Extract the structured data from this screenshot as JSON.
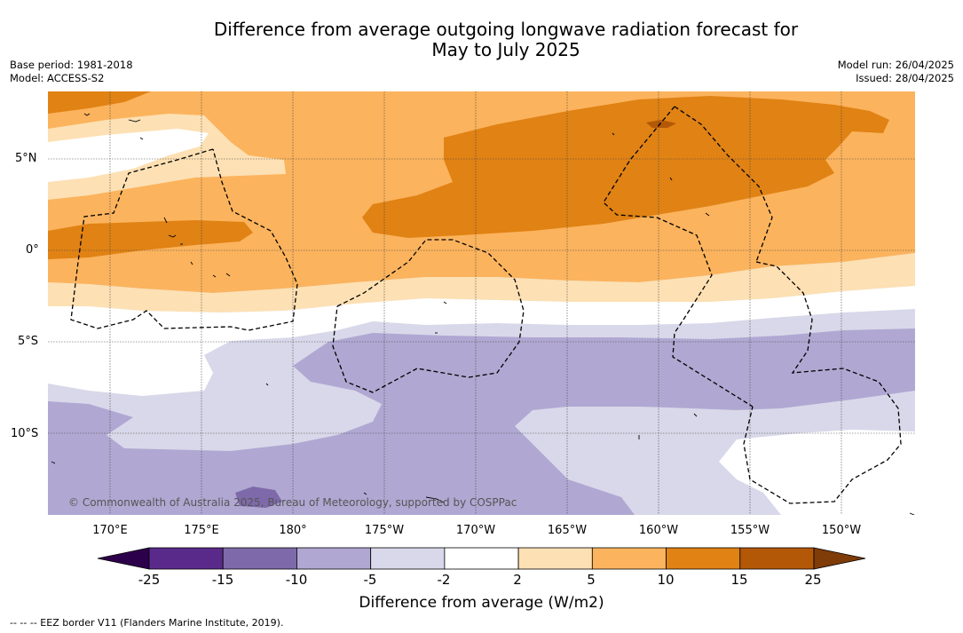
{
  "title_line1": "Difference from average outgoing longwave radiation forecast for",
  "title_line2": "May to July 2025",
  "meta_left": {
    "base_period": "Base period: 1981-2018",
    "model": "Model: ACCESS-S2"
  },
  "meta_right": {
    "model_run": "Model run: 26/04/2025",
    "issued": "Issued: 28/04/2025"
  },
  "lat_labels": [
    "5°N",
    "0°",
    "5°S",
    "10°S"
  ],
  "lon_labels": [
    "170°E",
    "175°E",
    "180°",
    "175°W",
    "170°W",
    "165°W",
    "160°W",
    "155°W",
    "150°W"
  ],
  "copyright": "© Commonwealth of Australia 2025, Bureau of Meteorology, supported by COSPPac",
  "colorbar": {
    "ticks": [
      "-25",
      "-15",
      "-10",
      "-5",
      "-2",
      "2",
      "5",
      "10",
      "15",
      "25"
    ],
    "colors": [
      "#5a2a8b",
      "#7e6aaa",
      "#b0a8d2",
      "#d8d8ea",
      "#ffffff",
      "#fde0b3",
      "#fbb35d",
      "#e08214",
      "#b35806"
    ],
    "extend_low_color": "#2d004b",
    "extend_high_color": "#7f3b08",
    "label": "Difference from average (W/m2)"
  },
  "footnote": "--  --  -- EEZ border V11 (Flanders Marine Institute, 2019)."
}
